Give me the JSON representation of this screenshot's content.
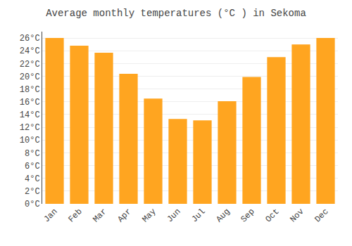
{
  "chart_data": {
    "type": "bar",
    "title": "Average monthly temperatures (°C ) in Sekoma",
    "categories": [
      "Jan",
      "Feb",
      "Mar",
      "Apr",
      "May",
      "Jun",
      "Jul",
      "Aug",
      "Sep",
      "Oct",
      "Nov",
      "Dec"
    ],
    "values": [
      26,
      24.8,
      23.7,
      20.4,
      16.5,
      13.3,
      13.1,
      16.1,
      19.9,
      23.0,
      25.0,
      26.0
    ],
    "color": "#FFA520",
    "ylim": [
      0,
      27
    ],
    "yticks": [
      {
        "value": 0,
        "label": "0°C"
      },
      {
        "value": 2,
        "label": "2°C"
      },
      {
        "value": 4,
        "label": "4°C"
      },
      {
        "value": 6,
        "label": "6°C"
      },
      {
        "value": 8,
        "label": "8°C"
      },
      {
        "value": 10,
        "label": "10°C"
      },
      {
        "value": 12,
        "label": "12°C"
      },
      {
        "value": 14,
        "label": "14°C"
      },
      {
        "value": 16,
        "label": "16°C"
      },
      {
        "value": 18,
        "label": "18°C"
      },
      {
        "value": 20,
        "label": "20°C"
      },
      {
        "value": 22,
        "label": "22°C"
      },
      {
        "value": 24,
        "label": "24°C"
      },
      {
        "value": 26,
        "label": "26°C"
      }
    ],
    "grid": true
  }
}
